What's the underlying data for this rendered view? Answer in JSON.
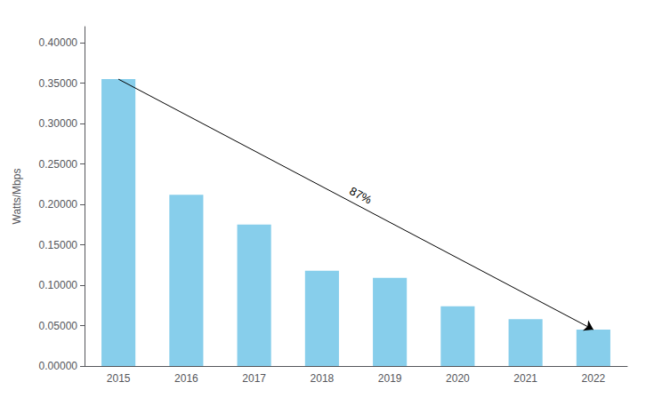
{
  "chart_data": {
    "type": "bar",
    "categories": [
      "2015",
      "2016",
      "2017",
      "2018",
      "2019",
      "2020",
      "2021",
      "2022"
    ],
    "values": [
      0.355,
      0.212,
      0.175,
      0.118,
      0.109,
      0.074,
      0.058,
      0.045
    ],
    "color": "#87CEEB",
    "ylabel": "Watts/Mbps",
    "ylim": [
      0.0,
      0.42
    ],
    "yticks": [
      {
        "value": 0.0,
        "label": "0.00000"
      },
      {
        "value": 0.05,
        "label": "0.05000"
      },
      {
        "value": 0.1,
        "label": "0.10000"
      },
      {
        "value": 0.15,
        "label": "0.15000"
      },
      {
        "value": 0.2,
        "label": "0.20000"
      },
      {
        "value": 0.25,
        "label": "0.25000"
      },
      {
        "value": 0.3,
        "label": "0.30000"
      },
      {
        "value": 0.35,
        "label": "0.35000"
      },
      {
        "value": 0.4,
        "label": "0.40000"
      }
    ],
    "annotation": "87%",
    "grid": false
  }
}
